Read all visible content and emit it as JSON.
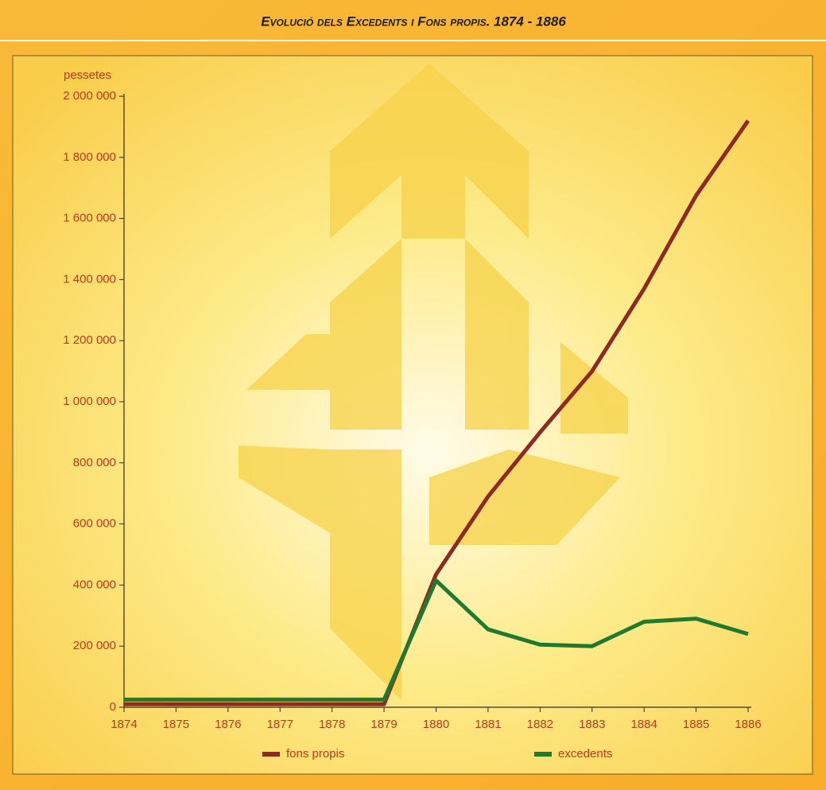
{
  "chart_data": {
    "type": "line",
    "title": "Evolució dels Excedents i Fons propis. 1874 - 1886",
    "y_label": "pessetes",
    "categories": [
      "1874",
      "1875",
      "1876",
      "1877",
      "1878",
      "1879",
      "1880",
      "1881",
      "1882",
      "1883",
      "1884",
      "1885",
      "1886"
    ],
    "series": [
      {
        "name": "fons propis",
        "color": "#8e2a22",
        "values": [
          10000,
          10000,
          10000,
          10000,
          10000,
          10000,
          435000,
          690000,
          900000,
          1100000,
          1370000,
          1675000,
          1920000
        ]
      },
      {
        "name": "excedents",
        "color": "#1f7a2f",
        "values": [
          25000,
          25000,
          25000,
          25000,
          25000,
          25000,
          415000,
          255000,
          205000,
          200000,
          280000,
          290000,
          240000
        ]
      }
    ],
    "ylim": [
      0,
      2000000
    ],
    "yticks": [
      0,
      {
        "value": 200000,
        "label": "200 000"
      },
      {
        "value": 400000,
        "label": "400 000"
      },
      {
        "value": 600000,
        "label": "600 000"
      },
      {
        "value": 800000,
        "label": "800 000"
      },
      {
        "value": 1000000,
        "label": "1 000 000"
      },
      {
        "value": 1200000,
        "label": "1 200 000"
      },
      {
        "value": 1400000,
        "label": "1 400 000"
      },
      {
        "value": 1600000,
        "label": "1 600 000"
      },
      {
        "value": 1800000,
        "label": "1 800 000"
      },
      {
        "value": 2000000,
        "label": "2 000 000"
      }
    ],
    "grid": false,
    "legend": "bottom"
  }
}
